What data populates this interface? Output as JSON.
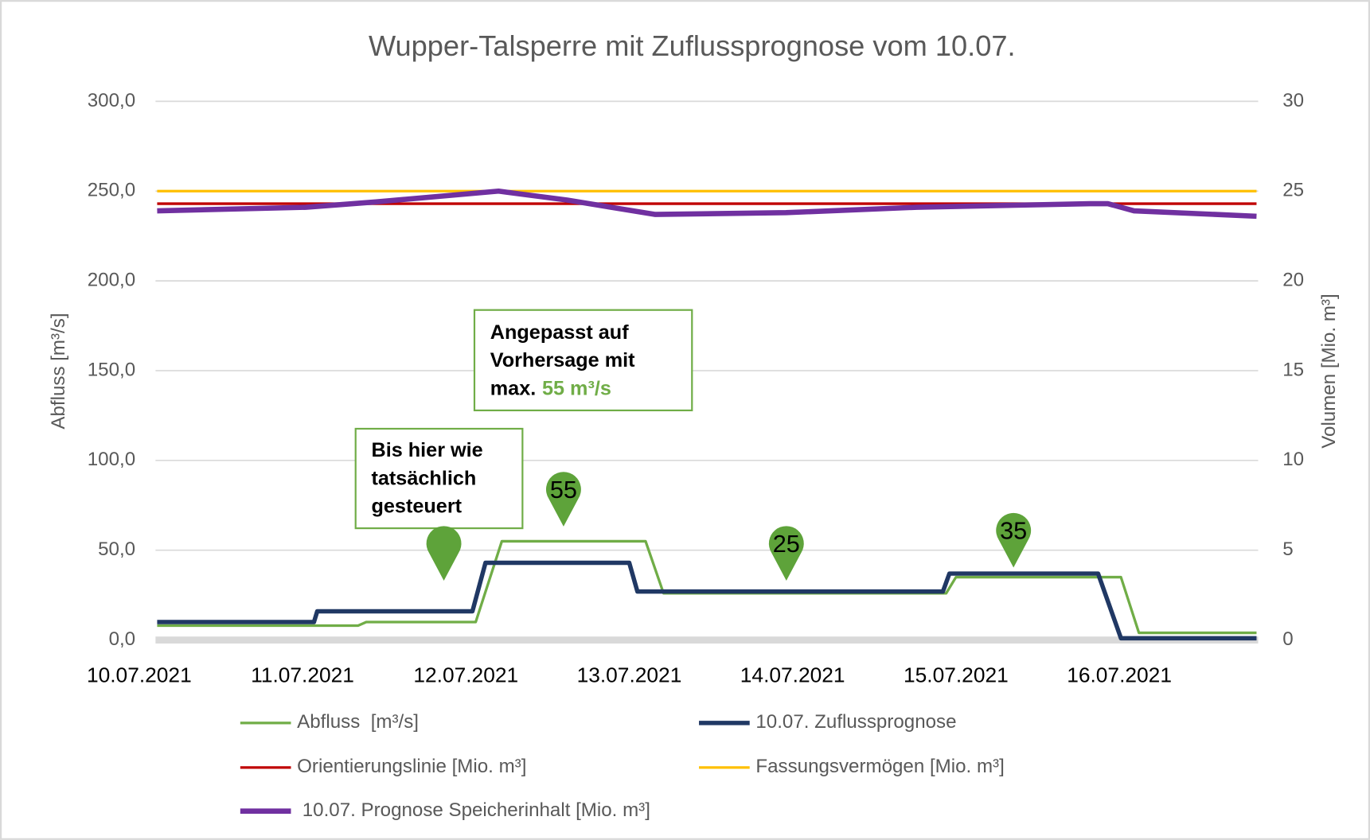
{
  "chart_data": {
    "type": "line",
    "title": "Wupper-Talsperre mit Zuflussprognose vom 10.07.",
    "y_label": "Abfluss [m³/s]",
    "y2_label": "Volumen [Mio. m³]",
    "xlim": [
      0.1,
      6.85
    ],
    "xticks": [
      {
        "value": 0,
        "label": "10.07.2021"
      },
      {
        "value": 1,
        "label": "11.07.2021"
      },
      {
        "value": 2,
        "label": "12.07.2021"
      },
      {
        "value": 3,
        "label": "13.07.2021"
      },
      {
        "value": 4,
        "label": "14.07.2021"
      },
      {
        "value": 5,
        "label": "15.07.2021"
      },
      {
        "value": 6,
        "label": "16.07.2021"
      }
    ],
    "ylim": [
      0,
      300
    ],
    "yticks": [
      {
        "value": 0,
        "label": "0,0"
      },
      {
        "value": 50,
        "label": "50,0"
      },
      {
        "value": 100,
        "label": "100,0"
      },
      {
        "value": 150,
        "label": "150,0"
      },
      {
        "value": 200,
        "label": "200,0"
      },
      {
        "value": 250,
        "label": "250,0"
      },
      {
        "value": 300,
        "label": "300,0"
      }
    ],
    "y2lim": [
      0,
      30
    ],
    "y2ticks": [
      0,
      5,
      10,
      15,
      20,
      25,
      30
    ],
    "grid": true,
    "legend": "bottom",
    "series": [
      {
        "name": "Abfluss  [m³/s]",
        "color": "#70ad47",
        "x": [
          0.11,
          1.34,
          1.39,
          2.06,
          2.22,
          3.1,
          3.21,
          4.94,
          5.0,
          6.01,
          6.12,
          6.84
        ],
        "values": [
          8,
          8,
          10,
          10,
          55,
          55,
          26,
          26,
          35,
          35,
          4,
          4
        ]
      },
      {
        "name": "10.07. Zuflussprognose",
        "color": "#203864",
        "x": [
          0.11,
          1.07,
          1.09,
          2.04,
          2.12,
          3.0,
          3.05,
          4.92,
          4.96,
          5.87,
          6.01,
          6.84
        ],
        "values": [
          10,
          10,
          16,
          16,
          43,
          43,
          27,
          27,
          37,
          37,
          1,
          1
        ]
      },
      {
        "name": "Orientierungslinie [Mio. m³]",
        "color": "#c00000",
        "axis": "y2",
        "x": [
          0.11,
          6.84
        ],
        "values": [
          24.3,
          24.3
        ]
      },
      {
        "name": "Fassungsvermögen [Mio. m³]",
        "color": "#ffc000",
        "axis": "y2",
        "x": [
          0.11,
          6.84
        ],
        "values": [
          25.0,
          25.0
        ]
      },
      {
        "name": "10.07. Prognose Speicherinhalt [Mio. m³]",
        "color": "#7030a0",
        "axis": "y2",
        "x": [
          0.11,
          1.02,
          1.45,
          2.2,
          2.62,
          2.89,
          3.16,
          3.96,
          4.76,
          5.82,
          5.93,
          6.09,
          6.84
        ],
        "values": [
          23.9,
          24.1,
          24.4,
          25.0,
          24.5,
          24.1,
          23.7,
          23.8,
          24.1,
          24.3,
          24.3,
          23.9,
          23.6
        ]
      }
    ],
    "annotations": [
      {
        "lines": [
          "Bis hier wie",
          "tatsächlich",
          "gesteuert"
        ]
      },
      {
        "lines": [
          "Angepasst auf",
          "Vorhersage mit",
          "max."
        ],
        "highlight": "55 m³/s"
      }
    ],
    "markers": [
      "55",
      "25",
      "35"
    ]
  }
}
